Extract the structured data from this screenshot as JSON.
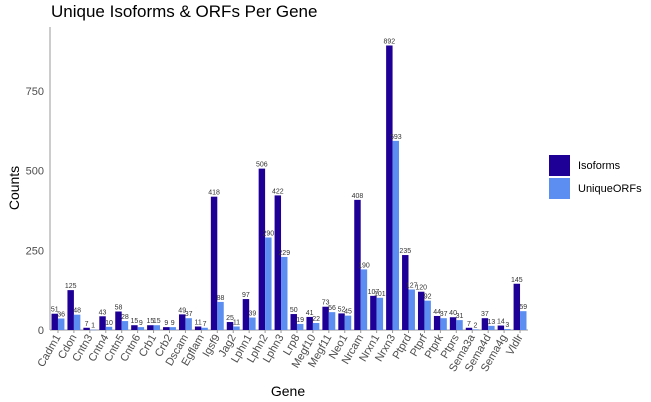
{
  "colors": {
    "isoforms": "#1f0096",
    "unique_orfs": "#5b8ef0",
    "axis": "#999999"
  },
  "chart_data": {
    "type": "bar",
    "title": "Unique Isoforms & ORFs Per Gene",
    "xlabel": "Gene",
    "ylabel": "Counts",
    "ylim": [
      0,
      950
    ],
    "yticks": [
      0,
      250,
      500,
      750
    ],
    "grid": false,
    "legend_position": "right",
    "categories": [
      "Cadm1",
      "Cdon",
      "Cntn3",
      "Cntn4",
      "Cntn5",
      "Cntn6",
      "Crb1",
      "Crb2",
      "Dscam",
      "Egflam",
      "Igsf9",
      "Jag2",
      "Lphn1",
      "Lphn2",
      "Lphn3",
      "Lrp8",
      "Megf10",
      "Megf11",
      "Neo1",
      "Nrcam",
      "Nrxn1",
      "Nrxn3",
      "Ptprd",
      "Ptprf",
      "Ptprk",
      "Ptprs",
      "Sema3a",
      "Sema4d",
      "Sema4g",
      "Vldlr"
    ],
    "series": [
      {
        "name": "Isoforms",
        "values": [
          51,
          125,
          7,
          43,
          58,
          15,
          15,
          9,
          49,
          11,
          418,
          25,
          97,
          506,
          422,
          50,
          41,
          73,
          52,
          408,
          107,
          892,
          235,
          120,
          44,
          40,
          7,
          37,
          14,
          145
        ]
      },
      {
        "name": "UniqueORFs",
        "values": [
          36,
          48,
          1,
          10,
          28,
          9,
          15,
          9,
          37,
          7,
          88,
          11,
          39,
          290,
          229,
          19,
          22,
          56,
          45,
          190,
          101,
          593,
          127,
          92,
          37,
          31,
          2,
          13,
          3,
          59
        ]
      }
    ]
  }
}
